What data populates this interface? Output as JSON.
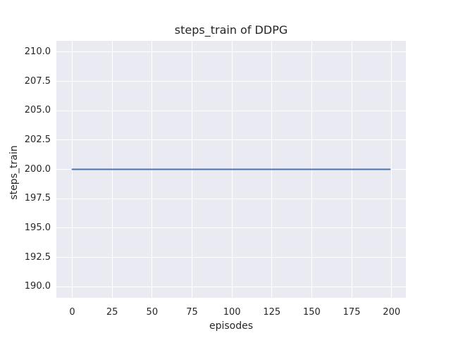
{
  "figure": {
    "background": "#ffffff"
  },
  "chart_data": {
    "type": "line",
    "title": "steps_train of DDPG",
    "xlabel": "episodes",
    "ylabel": "steps_train",
    "xlim": [
      -9.95,
      208.95
    ],
    "ylim": [
      189.05,
      210.95
    ],
    "xticks": [
      0,
      25,
      50,
      75,
      100,
      125,
      150,
      175,
      200
    ],
    "xtick_labels": [
      "0",
      "25",
      "50",
      "75",
      "100",
      "125",
      "150",
      "175",
      "200"
    ],
    "yticks": [
      190,
      192.5,
      195,
      197.5,
      200,
      202.5,
      205,
      207.5,
      210
    ],
    "ytick_labels": [
      "190.0",
      "192.5",
      "195.0",
      "197.5",
      "200.0",
      "202.5",
      "205.0",
      "207.5",
      "210.0"
    ],
    "grid": true,
    "legend_position": "none",
    "plot_background": "#eaeaf2",
    "grid_color": "#ffffff",
    "text_color": "#262626",
    "series": [
      {
        "name": "steps_train",
        "color": "#4c72b0",
        "linewidth": 2,
        "x": [
          0,
          199
        ],
        "y": [
          200,
          200
        ]
      }
    ]
  }
}
